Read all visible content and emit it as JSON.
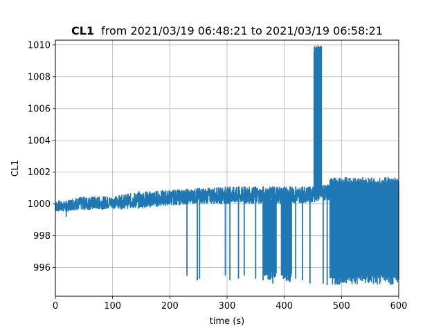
{
  "chart_data": {
    "type": "line",
    "title_bold": "CL1",
    "title_rest": "from 2021/03/19 06:48:21 to 2021/03/19 06:58:21",
    "xlabel": "time (s)",
    "ylabel": "CL1",
    "xlim": [
      0,
      600
    ],
    "ylim": [
      994.2,
      1010.3
    ],
    "xticks": [
      0,
      100,
      200,
      300,
      400,
      500,
      600
    ],
    "yticks": [
      996,
      998,
      1000,
      1002,
      1004,
      1006,
      1008,
      1010
    ],
    "grid": true,
    "line_color": "#1f77b4",
    "series": [
      {
        "envelope": [
          {
            "x": 0,
            "low": 999.5,
            "high": 1000.2
          },
          {
            "x": 20,
            "low": 999.5,
            "high": 1000.2
          },
          {
            "x": 30,
            "low": 999.6,
            "high": 1000.4
          },
          {
            "x": 60,
            "low": 999.6,
            "high": 1000.5
          },
          {
            "x": 100,
            "low": 999.7,
            "high": 1000.5
          },
          {
            "x": 150,
            "low": 999.7,
            "high": 1000.8
          },
          {
            "x": 200,
            "low": 999.9,
            "high": 1000.9
          },
          {
            "x": 250,
            "low": 1000.0,
            "high": 1001.0
          },
          {
            "x": 300,
            "low": 1000.0,
            "high": 1001.1
          },
          {
            "x": 350,
            "low": 1000.0,
            "high": 1001.1
          },
          {
            "x": 400,
            "low": 1000.0,
            "high": 1001.1
          },
          {
            "x": 450,
            "low": 1000.1,
            "high": 1001.1
          },
          {
            "x": 470,
            "low": 1000.2,
            "high": 1001.2
          },
          {
            "x": 500,
            "low": 1000.3,
            "high": 1001.3
          },
          {
            "x": 550,
            "low": 1000.3,
            "high": 1001.3
          },
          {
            "x": 600,
            "low": 1000.3,
            "high": 1001.3
          }
        ],
        "spikes": [
          {
            "x": 19,
            "to": 999.2
          },
          {
            "x": 230,
            "to": 995.5
          },
          {
            "x": 248,
            "to": 995.2
          },
          {
            "x": 252,
            "to": 995.3
          },
          {
            "x": 297,
            "to": 995.5
          },
          {
            "x": 305,
            "to": 995.2
          },
          {
            "x": 320,
            "to": 995.3
          },
          {
            "x": 330,
            "to": 995.5
          },
          {
            "x": 350,
            "to": 995.3
          },
          {
            "x": 363,
            "to": 995.2
          },
          {
            "x": 380,
            "to": 995.0
          },
          {
            "x": 400,
            "to": 995.4
          },
          {
            "x": 410,
            "to": 995.1
          },
          {
            "x": 420,
            "to": 995.3
          },
          {
            "x": 432,
            "to": 995.2
          },
          {
            "x": 445,
            "to": 995.0
          },
          {
            "x": 468,
            "to": 995.0
          },
          {
            "x": 475,
            "to": 994.9
          }
        ],
        "dense_spikes": [
          {
            "from": 365,
            "to_x": 387,
            "min": 995.2,
            "max": 1000.6
          },
          {
            "from": 395,
            "to_x": 413,
            "min": 995.0,
            "max": 1000.6
          },
          {
            "from": 480,
            "to_x": 600,
            "min": 994.9,
            "max": 1001.7
          }
        ],
        "burst": {
          "from": 452,
          "to_x": 465,
          "low": 1000.5,
          "high": 1010.0
        }
      }
    ]
  }
}
